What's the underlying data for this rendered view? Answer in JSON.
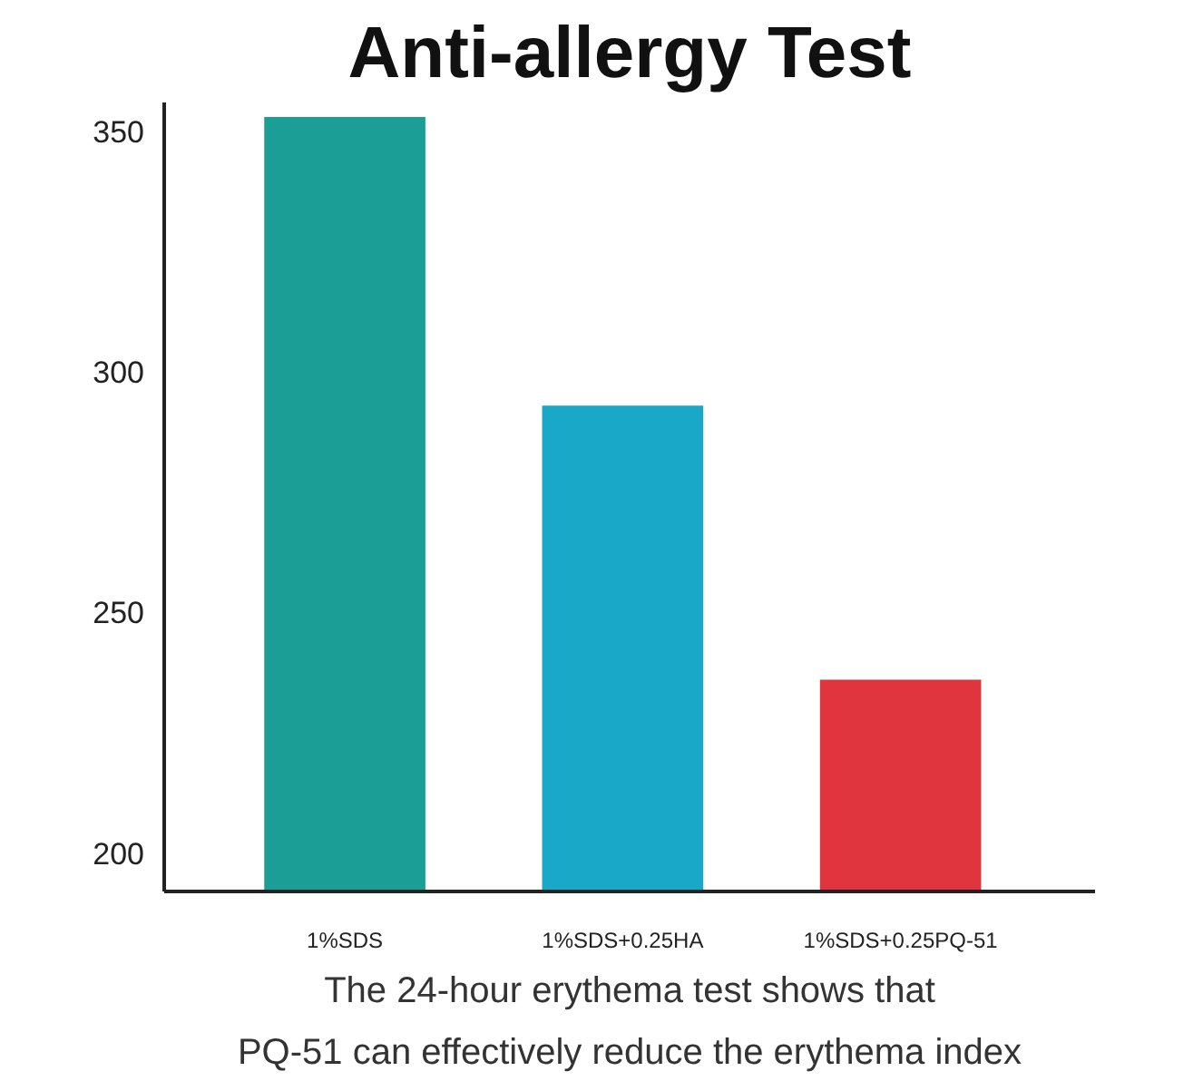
{
  "chart_data": {
    "type": "bar",
    "title": "Anti-allergy Test",
    "categories": [
      "1%SDS",
      "1%SDS+0.25HA",
      "1%SDS+0.25PQ-51"
    ],
    "values": [
      353,
      293,
      236
    ],
    "colors": [
      "#1a9e96",
      "#1aa8c8",
      "#e0353f"
    ],
    "ylim": [
      192,
      356
    ],
    "yticks": [
      200,
      250,
      300,
      350
    ],
    "grid": false,
    "annotations": [
      "The 24-hour erythema test shows that\nPQ-51 can effectively reduce the erythema index"
    ]
  }
}
